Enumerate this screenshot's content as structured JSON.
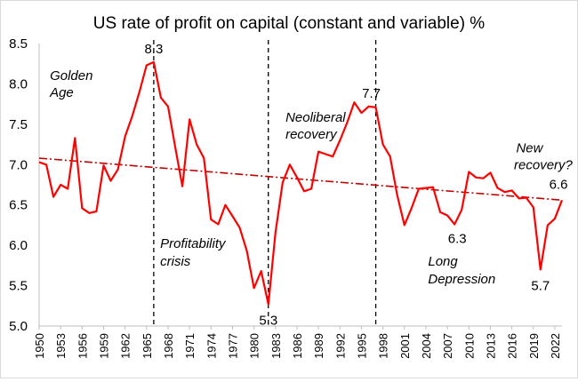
{
  "chart_data": {
    "type": "line",
    "title": "US rate of profit on capital (constant and variable) %",
    "xlabel": "",
    "ylabel": "",
    "ylim": [
      5.0,
      8.5
    ],
    "yticks": [
      "5.0",
      "5.5",
      "6.0",
      "6.5",
      "7.0",
      "7.5",
      "8.0",
      "8.5"
    ],
    "xlim": [
      1950,
      2023
    ],
    "xticks": [
      "1950",
      "1953",
      "1956",
      "1959",
      "1962",
      "1965",
      "1968",
      "1971",
      "1974",
      "1977",
      "1980",
      "1983",
      "1986",
      "1989",
      "1992",
      "1995",
      "1998",
      "2001",
      "2004",
      "2007",
      "2010",
      "2013",
      "2016",
      "2019",
      "2022"
    ],
    "grid": false,
    "legend": "none",
    "colors": {
      "series": "#ff0000",
      "trend": "#c00000",
      "vlines": "#000000"
    },
    "series": [
      {
        "x": [
          1950,
          1951,
          1952,
          1953,
          1954,
          1955,
          1956,
          1957,
          1958,
          1959,
          1960,
          1961,
          1962,
          1963,
          1964,
          1965,
          1966,
          1967,
          1968,
          1969,
          1970,
          1971,
          1972,
          1973,
          1974,
          1975,
          1976,
          1977,
          1978,
          1979,
          1980,
          1981,
          1982,
          1983,
          1984,
          1985,
          1986,
          1987,
          1988,
          1989,
          1990,
          1991,
          1992,
          1993,
          1994,
          1995,
          1996,
          1997,
          1998,
          1999,
          2000,
          2001,
          2002,
          2003,
          2004,
          2005,
          2006,
          2007,
          2008,
          2009,
          2010,
          2011,
          2012,
          2013,
          2014,
          2015,
          2016,
          2017,
          2018,
          2019,
          2020,
          2021,
          2022,
          2023
        ],
        "values": [
          7.03,
          7.0,
          6.6,
          6.75,
          6.7,
          7.33,
          6.46,
          6.4,
          6.42,
          6.99,
          6.8,
          6.94,
          7.35,
          7.6,
          7.9,
          8.23,
          8.27,
          7.83,
          7.72,
          7.22,
          6.73,
          7.56,
          7.25,
          7.08,
          6.32,
          6.26,
          6.5,
          6.36,
          6.22,
          5.93,
          5.47,
          5.68,
          5.27,
          6.16,
          6.78,
          7.0,
          6.84,
          6.67,
          6.7,
          7.16,
          7.13,
          7.1,
          7.3,
          7.52,
          7.77,
          7.64,
          7.72,
          7.71,
          7.25,
          7.1,
          6.62,
          6.25,
          6.46,
          6.7,
          6.71,
          6.72,
          6.41,
          6.37,
          6.26,
          6.44,
          6.91,
          6.84,
          6.83,
          6.9,
          6.71,
          6.66,
          6.68,
          6.58,
          6.59,
          6.47,
          5.7,
          6.25,
          6.33,
          6.56
        ]
      },
      {
        "style": "dash-dot trend",
        "x": [
          1950,
          2023
        ],
        "values": [
          7.08,
          6.56
        ]
      }
    ],
    "vlines": [
      1966,
      1982,
      1997
    ],
    "data_labels": [
      {
        "x": 1966,
        "y": 8.27,
        "text": "8.3"
      },
      {
        "x": 1982,
        "y": 5.27,
        "text": "5.3"
      },
      {
        "x": 1997,
        "y": 7.72,
        "text": "7.7"
      },
      {
        "x": 2008,
        "y": 6.26,
        "text": "6.3"
      },
      {
        "x": 2020,
        "y": 5.7,
        "text": "5.7"
      },
      {
        "x": 2023,
        "y": 6.56,
        "text": "6.6"
      }
    ],
    "annotations": [
      {
        "text": "Golden",
        "x": 1951.5,
        "y": 8.05
      },
      {
        "text": "Age",
        "x": 1951.5,
        "y": 7.84
      },
      {
        "text": "Profitability",
        "x": 1966.9,
        "y": 5.97
      },
      {
        "text": "crisis",
        "x": 1966.9,
        "y": 5.75
      },
      {
        "text": "Neoliberal",
        "x": 1984.4,
        "y": 7.53
      },
      {
        "text": "recovery",
        "x": 1984.4,
        "y": 7.32
      },
      {
        "text": "New",
        "x": 2016.6,
        "y": 7.15
      },
      {
        "text": "recovery?",
        "x": 2016.3,
        "y": 6.94
      },
      {
        "text": "Long",
        "x": 2004.3,
        "y": 5.75
      },
      {
        "text": "Depression",
        "x": 2004.3,
        "y": 5.53
      }
    ]
  }
}
